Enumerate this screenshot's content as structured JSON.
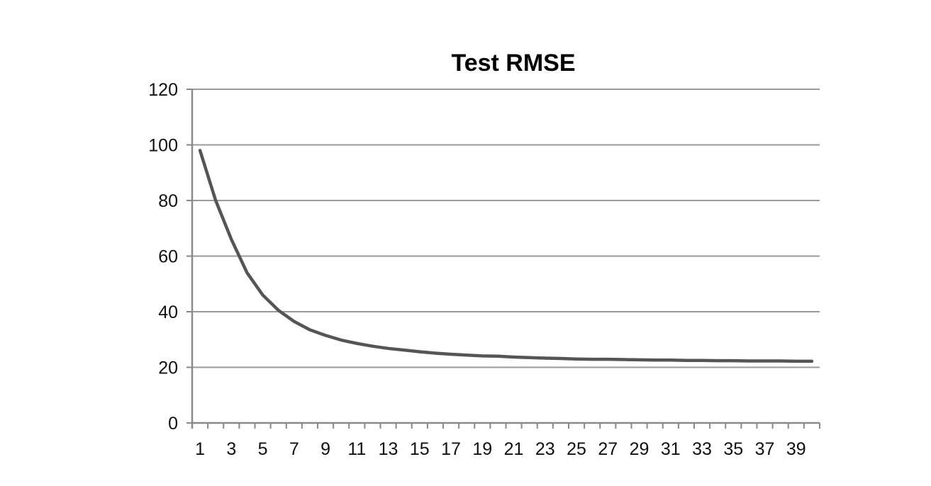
{
  "chart_data": {
    "type": "line",
    "title": "Test RMSE",
    "xlabel": "",
    "ylabel": "",
    "ylim": [
      0,
      120
    ],
    "yticks": [
      0,
      20,
      40,
      60,
      80,
      100,
      120
    ],
    "x": [
      1,
      2,
      3,
      4,
      5,
      6,
      7,
      8,
      9,
      10,
      11,
      12,
      13,
      14,
      15,
      16,
      17,
      18,
      19,
      20,
      21,
      22,
      23,
      24,
      25,
      26,
      27,
      28,
      29,
      30,
      31,
      32,
      33,
      34,
      35,
      36,
      37,
      38,
      39,
      40
    ],
    "xtick_labels": [
      "1",
      "3",
      "5",
      "7",
      "9",
      "11",
      "13",
      "15",
      "17",
      "19",
      "21",
      "23",
      "25",
      "27",
      "29",
      "31",
      "33",
      "35",
      "37",
      "39"
    ],
    "series": [
      {
        "values": [
          98,
          80,
          66,
          54,
          46,
          40.5,
          36.5,
          33.5,
          31.5,
          29.8,
          28.6,
          27.6,
          26.8,
          26.2,
          25.6,
          25.1,
          24.7,
          24.4,
          24.1,
          24.0,
          23.7,
          23.5,
          23.3,
          23.2,
          23.0,
          22.9,
          22.9,
          22.8,
          22.7,
          22.6,
          22.6,
          22.5,
          22.5,
          22.4,
          22.4,
          22.3,
          22.3,
          22.3,
          22.2,
          22.2
        ],
        "color": "#555555"
      }
    ],
    "grid": true,
    "legend": "none"
  }
}
